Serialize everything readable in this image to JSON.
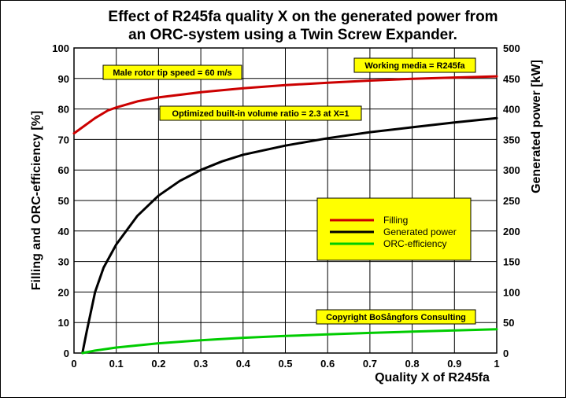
{
  "chart_data": {
    "type": "line",
    "title_lines": [
      "Effect of R245fa quality X on the generated power from",
      "an ORC-system using a Twin Screw Expander."
    ],
    "xlabel": "Quality X of R245fa",
    "ylabel_left": "Filling and ORC-efficiency  [%]",
    "ylabel_right": "Generated power [kW]",
    "xlim": [
      0,
      1
    ],
    "ylim_left": [
      0,
      100
    ],
    "ylim_right": [
      0,
      500
    ],
    "x_ticks": [
      0,
      0.1,
      0.2,
      0.3,
      0.4,
      0.5,
      0.6,
      0.7,
      0.8,
      0.9,
      1
    ],
    "x_tick_labels": [
      "0",
      "0.1",
      "0.2",
      "0.3",
      "0.4",
      "0.5",
      "0.6",
      "0.7",
      "0.8",
      "0.9",
      "1"
    ],
    "y_ticks_left": [
      0,
      10,
      20,
      30,
      40,
      50,
      60,
      70,
      80,
      90,
      100
    ],
    "y_ticks_right": [
      0,
      50,
      100,
      150,
      200,
      250,
      300,
      350,
      400,
      450,
      500
    ],
    "grid": true,
    "legend_position": "center-right",
    "series": [
      {
        "name": "Filling",
        "axis": "left",
        "color": "#cc0000",
        "x": [
          0,
          0.02,
          0.05,
          0.08,
          0.1,
          0.15,
          0.2,
          0.3,
          0.4,
          0.5,
          0.6,
          0.7,
          0.8,
          0.9,
          1.0
        ],
        "y": [
          72,
          74,
          77,
          79.5,
          80.5,
          82.5,
          83.8,
          85.5,
          86.8,
          87.8,
          88.6,
          89.3,
          89.9,
          90.3,
          90.7
        ]
      },
      {
        "name": "Generated power",
        "axis": "right",
        "color": "#000000",
        "x": [
          0.02,
          0.03,
          0.05,
          0.07,
          0.1,
          0.15,
          0.2,
          0.25,
          0.3,
          0.35,
          0.4,
          0.5,
          0.6,
          0.7,
          0.8,
          0.9,
          1.0
        ],
        "y": [
          0,
          35,
          100,
          140,
          178,
          225,
          258,
          282,
          300,
          314,
          325,
          340,
          352,
          362,
          370,
          378,
          385
        ]
      },
      {
        "name": "ORC-efficiency",
        "axis": "left",
        "color": "#00cc00",
        "x": [
          0.02,
          0.05,
          0.1,
          0.2,
          0.3,
          0.4,
          0.5,
          0.6,
          0.7,
          0.8,
          0.9,
          1.0
        ],
        "y": [
          0,
          0.8,
          1.8,
          3.2,
          4.2,
          5.0,
          5.6,
          6.1,
          6.6,
          7.0,
          7.4,
          7.8
        ]
      }
    ],
    "annotations": [
      "Male rotor tip speed = 60 m/s",
      "Working media = R245fa",
      "Optimized built-in volume ratio = 2.3 at X=1",
      "Copyright BoSångfors Consulting"
    ]
  },
  "colors": {
    "annotation_fill": "#ffff00",
    "grid": "#000000",
    "frame": "#000000"
  }
}
